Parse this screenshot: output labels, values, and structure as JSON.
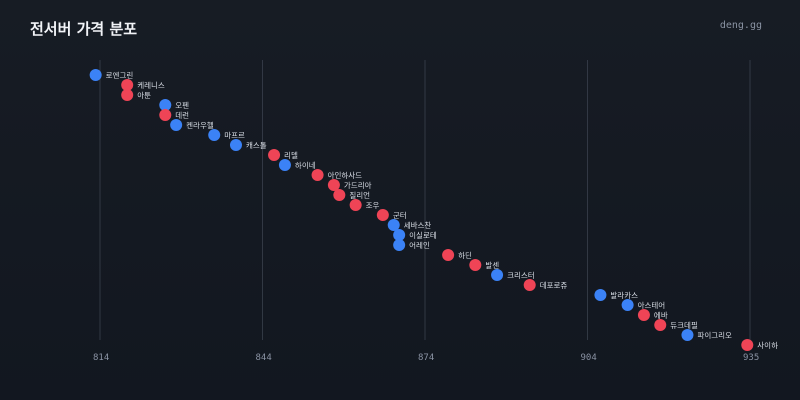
{
  "header": {
    "title": "전서버 가격 분포",
    "brand": "deng.gg"
  },
  "colors": {
    "background": "#151a22",
    "grid": "#3a414d",
    "blue": "#3b82f6",
    "red": "#ef4456",
    "label": "#d9dee6",
    "tick": "#8a93a3"
  },
  "chart_data": {
    "type": "scatter",
    "title": "전서버 가격 분포",
    "xlabel": "",
    "ylabel": "",
    "xlim": [
      816,
      935.5
    ],
    "xticks": [
      814,
      844,
      874,
      904,
      935
    ],
    "grid": "vertical",
    "legend": "none",
    "points": [
      {
        "name": "로엔그린",
        "x": 815.2,
        "color": "blue"
      },
      {
        "name": "케레니스",
        "x": 821.0,
        "color": "red"
      },
      {
        "name": "아툰",
        "x": 821.0,
        "color": "red"
      },
      {
        "name": "오펜",
        "x": 828.0,
        "color": "blue"
      },
      {
        "name": "데런",
        "x": 828.0,
        "color": "red"
      },
      {
        "name": "켄라우헬",
        "x": 830.0,
        "color": "blue"
      },
      {
        "name": "마프르",
        "x": 837.0,
        "color": "blue"
      },
      {
        "name": "캐스톨",
        "x": 841.0,
        "color": "blue"
      },
      {
        "name": "리델",
        "x": 848.0,
        "color": "red"
      },
      {
        "name": "하이네",
        "x": 850.0,
        "color": "blue"
      },
      {
        "name": "아인하사드",
        "x": 856.0,
        "color": "red"
      },
      {
        "name": "가드리아",
        "x": 859.0,
        "color": "red"
      },
      {
        "name": "질리언",
        "x": 860.0,
        "color": "red"
      },
      {
        "name": "조우",
        "x": 863.0,
        "color": "red"
      },
      {
        "name": "군터",
        "x": 868.0,
        "color": "red"
      },
      {
        "name": "세바스찬",
        "x": 870.0,
        "color": "blue"
      },
      {
        "name": "이실로테",
        "x": 871.0,
        "color": "blue"
      },
      {
        "name": "어레인",
        "x": 871.0,
        "color": "blue"
      },
      {
        "name": "하딘",
        "x": 880.0,
        "color": "red"
      },
      {
        "name": "발센",
        "x": 885.0,
        "color": "red"
      },
      {
        "name": "크리스터",
        "x": 889.0,
        "color": "blue"
      },
      {
        "name": "데포로쥬",
        "x": 895.0,
        "color": "red"
      },
      {
        "name": "발라카스",
        "x": 908.0,
        "color": "blue"
      },
      {
        "name": "아스테어",
        "x": 913.0,
        "color": "blue"
      },
      {
        "name": "에바",
        "x": 916.0,
        "color": "red"
      },
      {
        "name": "듀크데필",
        "x": 919.0,
        "color": "red"
      },
      {
        "name": "파이그리오",
        "x": 924.0,
        "color": "blue"
      },
      {
        "name": "사이하",
        "x": 935.0,
        "color": "red"
      }
    ]
  }
}
